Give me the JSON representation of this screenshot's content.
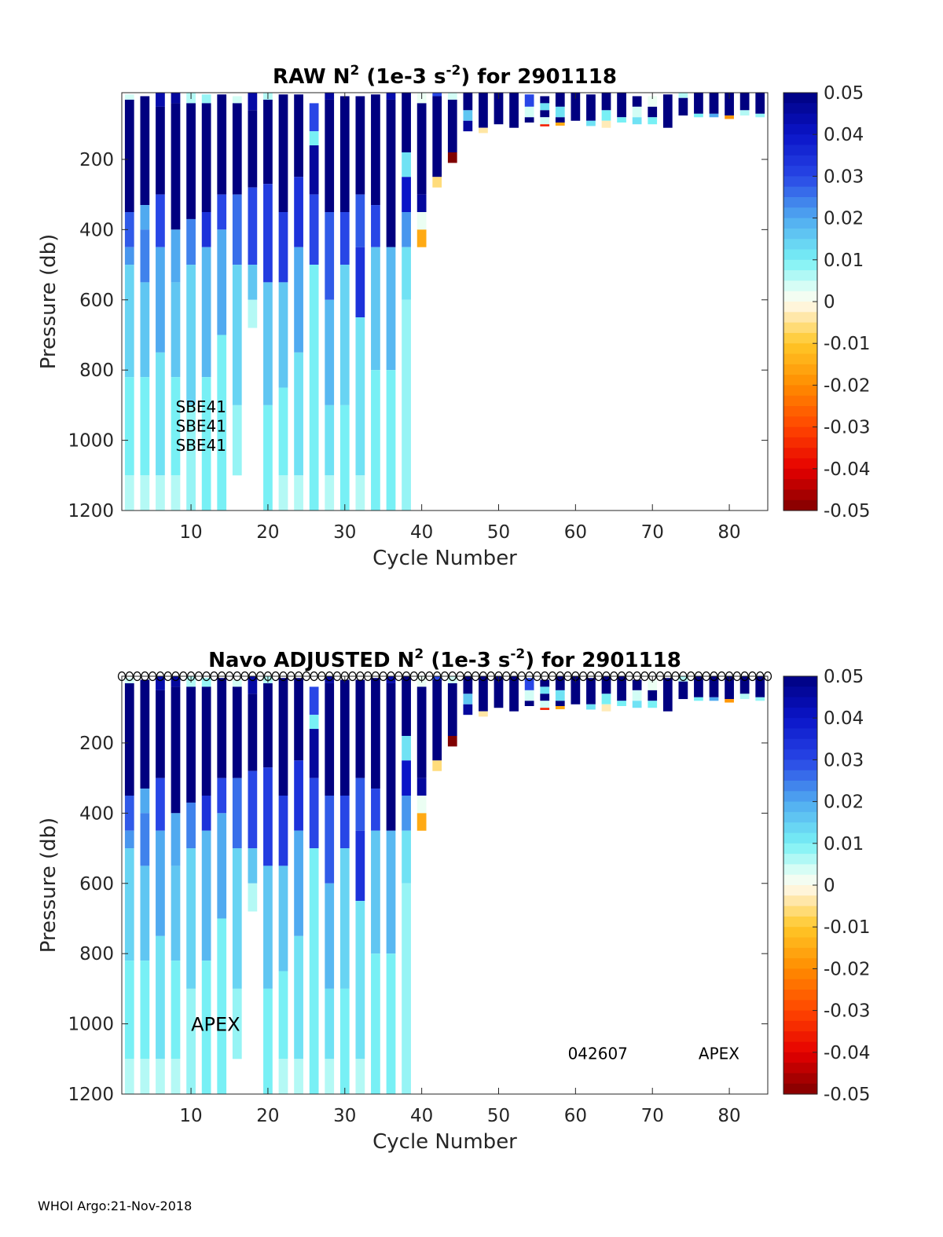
{
  "footer": "WHOI Argo:21-Nov-2018",
  "chart_data": [
    {
      "type": "heatmap",
      "title_parts": [
        "RAW N",
        "2",
        " (1e-3 s",
        "-2",
        ") for 2901118"
      ],
      "xlabel": "Cycle Number",
      "ylabel": "Pressure (db)",
      "xlim": [
        1,
        85
      ],
      "ylim": [
        1200,
        10
      ],
      "xticks": [
        10,
        20,
        30,
        40,
        50,
        60,
        70,
        80
      ],
      "yticks": [
        200,
        400,
        600,
        800,
        1000,
        1200
      ],
      "colorbar": {
        "min": -0.05,
        "max": 0.05,
        "ticks": [
          "0.05",
          "0.04",
          "0.03",
          "0.02",
          "0.01",
          "0",
          "-0.01",
          "-0.02",
          "-0.03",
          "-0.04",
          "-0.05"
        ]
      },
      "annotations": [
        {
          "text": "SBE41",
          "x": 8,
          "y": 920
        },
        {
          "text": "SBE41",
          "x": 8,
          "y": 975
        },
        {
          "text": "SBE41",
          "x": 8,
          "y": 1030
        }
      ],
      "surface_markers": false,
      "columns": [
        {
          "cycle": 2,
          "segs": [
            [
              15,
              30,
              0.004
            ],
            [
              30,
              350,
              0.05
            ],
            [
              350,
              450,
              0.028
            ],
            [
              450,
              500,
              0.022
            ],
            [
              500,
              820,
              0.014
            ],
            [
              820,
              1100,
              0.01
            ],
            [
              1100,
              1200,
              0.006
            ]
          ]
        },
        {
          "cycle": 4,
          "segs": [
            [
              20,
              330,
              0.05
            ],
            [
              330,
              400,
              0.02
            ],
            [
              400,
              550,
              0.024
            ],
            [
              550,
              820,
              0.016
            ],
            [
              820,
              1100,
              0.01
            ],
            [
              1100,
              1200,
              0.006
            ]
          ]
        },
        {
          "cycle": 6,
          "segs": [
            [
              10,
              50,
              0.044
            ],
            [
              50,
              300,
              0.05
            ],
            [
              300,
              450,
              0.03
            ],
            [
              450,
              750,
              0.02
            ],
            [
              750,
              1100,
              0.012
            ],
            [
              1100,
              1200,
              0.006
            ]
          ]
        },
        {
          "cycle": 8,
          "segs": [
            [
              10,
              40,
              0.046
            ],
            [
              40,
              400,
              0.05
            ],
            [
              400,
              550,
              0.02
            ],
            [
              550,
              820,
              0.016
            ],
            [
              820,
              1100,
              0.01
            ],
            [
              1100,
              1200,
              0.006
            ]
          ]
        },
        {
          "cycle": 10,
          "segs": [
            [
              10,
              40,
              0.006
            ],
            [
              40,
              370,
              0.05
            ],
            [
              370,
              500,
              0.024
            ],
            [
              500,
              900,
              0.014
            ],
            [
              900,
              1200,
              0.008
            ]
          ]
        },
        {
          "cycle": 12,
          "segs": [
            [
              15,
              40,
              0.008
            ],
            [
              40,
              350,
              0.05
            ],
            [
              350,
              450,
              0.034
            ],
            [
              450,
              820,
              0.018
            ],
            [
              820,
              1200,
              0.01
            ]
          ]
        },
        {
          "cycle": 14,
          "segs": [
            [
              15,
              300,
              0.05
            ],
            [
              300,
              400,
              0.03
            ],
            [
              400,
              700,
              0.02
            ],
            [
              700,
              1200,
              0.01
            ]
          ]
        },
        {
          "cycle": 16,
          "segs": [
            [
              20,
              40,
              0.004
            ],
            [
              40,
              300,
              0.05
            ],
            [
              300,
              500,
              0.026
            ],
            [
              500,
              900,
              0.014
            ],
            [
              900,
              1100,
              0.008
            ]
          ]
        },
        {
          "cycle": 18,
          "segs": [
            [
              10,
              60,
              0.045
            ],
            [
              60,
              280,
              0.05
            ],
            [
              280,
              500,
              0.03
            ],
            [
              500,
              600,
              0.016
            ],
            [
              600,
              680,
              0.006
            ]
          ]
        },
        {
          "cycle": 20,
          "segs": [
            [
              10,
              30,
              0.006
            ],
            [
              30,
              270,
              0.05
            ],
            [
              270,
              550,
              0.032
            ],
            [
              550,
              900,
              0.016
            ],
            [
              900,
              1200,
              0.01
            ]
          ]
        },
        {
          "cycle": 22,
          "segs": [
            [
              15,
              350,
              0.05
            ],
            [
              350,
              550,
              0.032
            ],
            [
              550,
              850,
              0.016
            ],
            [
              850,
              1100,
              0.01
            ],
            [
              1100,
              1200,
              0.006
            ]
          ]
        },
        {
          "cycle": 24,
          "segs": [
            [
              15,
              250,
              0.05
            ],
            [
              250,
              450,
              0.034
            ],
            [
              450,
              750,
              0.02
            ],
            [
              750,
              1100,
              0.012
            ],
            [
              1100,
              1200,
              0.006
            ]
          ]
        },
        {
          "cycle": 26,
          "segs": [
            [
              40,
              120,
              0.03
            ],
            [
              120,
              160,
              0.01
            ],
            [
              160,
              300,
              0.046
            ],
            [
              300,
              500,
              0.03
            ],
            [
              500,
              1200,
              0.01
            ]
          ]
        },
        {
          "cycle": 28,
          "segs": [
            [
              10,
              30,
              0.046
            ],
            [
              30,
              350,
              0.05
            ],
            [
              350,
              600,
              0.028
            ],
            [
              600,
              900,
              0.018
            ],
            [
              900,
              1100,
              0.012
            ],
            [
              1100,
              1200,
              0.006
            ]
          ]
        },
        {
          "cycle": 30,
          "segs": [
            [
              20,
              350,
              0.05
            ],
            [
              350,
              500,
              0.03
            ],
            [
              500,
              900,
              0.014
            ],
            [
              900,
              1200,
              0.01
            ]
          ]
        },
        {
          "cycle": 32,
          "segs": [
            [
              20,
              300,
              0.05
            ],
            [
              300,
              450,
              0.028
            ],
            [
              450,
              650,
              0.034
            ],
            [
              650,
              1100,
              0.012
            ],
            [
              1100,
              1200,
              0.006
            ]
          ]
        },
        {
          "cycle": 34,
          "segs": [
            [
              15,
              330,
              0.05
            ],
            [
              330,
              450,
              0.03
            ],
            [
              450,
              800,
              0.016
            ],
            [
              800,
              1200,
              0.01
            ]
          ]
        },
        {
          "cycle": 36,
          "segs": [
            [
              10,
              30,
              0.044
            ],
            [
              30,
              450,
              0.05
            ],
            [
              450,
              800,
              0.018
            ],
            [
              800,
              1200,
              0.01
            ]
          ]
        },
        {
          "cycle": 38,
          "segs": [
            [
              10,
              180,
              0.05
            ],
            [
              180,
              250,
              0.012
            ],
            [
              250,
              350,
              0.04
            ],
            [
              350,
              450,
              0.022
            ],
            [
              450,
              600,
              0.012
            ],
            [
              600,
              1200,
              0.008
            ]
          ]
        },
        {
          "cycle": 40,
          "segs": [
            [
              10,
              40,
              0.002
            ],
            [
              40,
              300,
              0.05
            ],
            [
              300,
              350,
              0.046
            ],
            [
              350,
              400,
              0.002
            ],
            [
              400,
              450,
              -0.015
            ]
          ]
        },
        {
          "cycle": 42,
          "segs": [
            [
              10,
              20,
              0.03
            ],
            [
              20,
              250,
              0.05
            ],
            [
              250,
              280,
              -0.006
            ]
          ]
        },
        {
          "cycle": 44,
          "segs": [
            [
              10,
              30,
              0.004
            ],
            [
              30,
              180,
              0.05
            ],
            [
              180,
              210,
              -0.05
            ]
          ]
        },
        {
          "cycle": 46,
          "segs": [
            [
              10,
              60,
              0.05
            ],
            [
              60,
              90,
              0.016
            ],
            [
              90,
              120,
              0.046
            ]
          ]
        },
        {
          "cycle": 48,
          "segs": [
            [
              10,
              110,
              0.05
            ],
            [
              110,
              125,
              -0.004
            ]
          ]
        },
        {
          "cycle": 50,
          "segs": [
            [
              10,
              100,
              0.05
            ]
          ]
        },
        {
          "cycle": 52,
          "segs": [
            [
              10,
              110,
              0.05
            ]
          ]
        },
        {
          "cycle": 54,
          "segs": [
            [
              15,
              50,
              0.03
            ],
            [
              50,
              80,
              0.004
            ],
            [
              80,
              95,
              0.05
            ]
          ]
        },
        {
          "cycle": 56,
          "segs": [
            [
              20,
              40,
              0.05
            ],
            [
              40,
              60,
              0.012
            ],
            [
              60,
              80,
              0.05
            ],
            [
              80,
              100,
              0.004
            ],
            [
              100,
              106,
              -0.035
            ]
          ]
        },
        {
          "cycle": 58,
          "segs": [
            [
              10,
              50,
              0.05
            ],
            [
              50,
              80,
              0.012
            ],
            [
              80,
              95,
              0.05
            ],
            [
              95,
              104,
              -0.015
            ]
          ]
        },
        {
          "cycle": 60,
          "segs": [
            [
              10,
              90,
              0.05
            ]
          ]
        },
        {
          "cycle": 62,
          "segs": [
            [
              15,
              90,
              0.05
            ],
            [
              90,
              105,
              0.012
            ]
          ]
        },
        {
          "cycle": 64,
          "segs": [
            [
              10,
              60,
              0.05
            ],
            [
              60,
              90,
              0.01
            ],
            [
              90,
              110,
              -0.003
            ]
          ]
        },
        {
          "cycle": 66,
          "segs": [
            [
              10,
              80,
              0.05
            ],
            [
              80,
              95,
              0.01
            ]
          ]
        },
        {
          "cycle": 68,
          "segs": [
            [
              20,
              50,
              0.05
            ],
            [
              50,
              80,
              0.004
            ],
            [
              80,
              100,
              0.012
            ]
          ]
        },
        {
          "cycle": 70,
          "segs": [
            [
              20,
              50,
              0.002
            ],
            [
              50,
              80,
              0.05
            ],
            [
              80,
              100,
              0.01
            ]
          ]
        },
        {
          "cycle": 72,
          "segs": [
            [
              15,
              110,
              0.05
            ]
          ]
        },
        {
          "cycle": 74,
          "segs": [
            [
              10,
              25,
              0.006
            ],
            [
              25,
              75,
              0.05
            ]
          ]
        },
        {
          "cycle": 76,
          "segs": [
            [
              10,
              70,
              0.05
            ],
            [
              70,
              80,
              0.01
            ]
          ]
        },
        {
          "cycle": 78,
          "segs": [
            [
              10,
              70,
              0.05
            ],
            [
              70,
              80,
              0.02
            ]
          ]
        },
        {
          "cycle": 80,
          "segs": [
            [
              10,
              75,
              0.05
            ],
            [
              75,
              85,
              -0.018
            ]
          ]
        },
        {
          "cycle": 82,
          "segs": [
            [
              10,
              60,
              0.05
            ],
            [
              60,
              75,
              0.006
            ]
          ]
        },
        {
          "cycle": 84,
          "segs": [
            [
              10,
              70,
              0.05
            ],
            [
              70,
              80,
              0.008
            ]
          ]
        }
      ]
    },
    {
      "type": "heatmap",
      "title_parts": [
        "Navo  ADJUSTED N",
        "2",
        " (1e-3 s",
        "-2",
        ") for 2901118"
      ],
      "xlabel": "Cycle Number",
      "ylabel": "Pressure (db)",
      "xlim": [
        1,
        85
      ],
      "ylim": [
        1200,
        10
      ],
      "xticks": [
        10,
        20,
        30,
        40,
        50,
        60,
        70,
        80
      ],
      "yticks": [
        200,
        400,
        600,
        800,
        1000,
        1200
      ],
      "colorbar": {
        "min": -0.05,
        "max": 0.05,
        "ticks": [
          "0.05",
          "0.04",
          "0.03",
          "0.02",
          "0.01",
          "0",
          "-0.01",
          "-0.02",
          "-0.03",
          "-0.04",
          "-0.05"
        ]
      },
      "annotations": [
        {
          "text": "APEX",
          "x": 10,
          "y": 1020,
          "size": "large"
        },
        {
          "text": "042607",
          "x": 59,
          "y": 1100
        },
        {
          "text": "APEX",
          "x": 76,
          "y": 1100
        }
      ],
      "surface_markers": true,
      "same_columns_as": 0
    }
  ]
}
